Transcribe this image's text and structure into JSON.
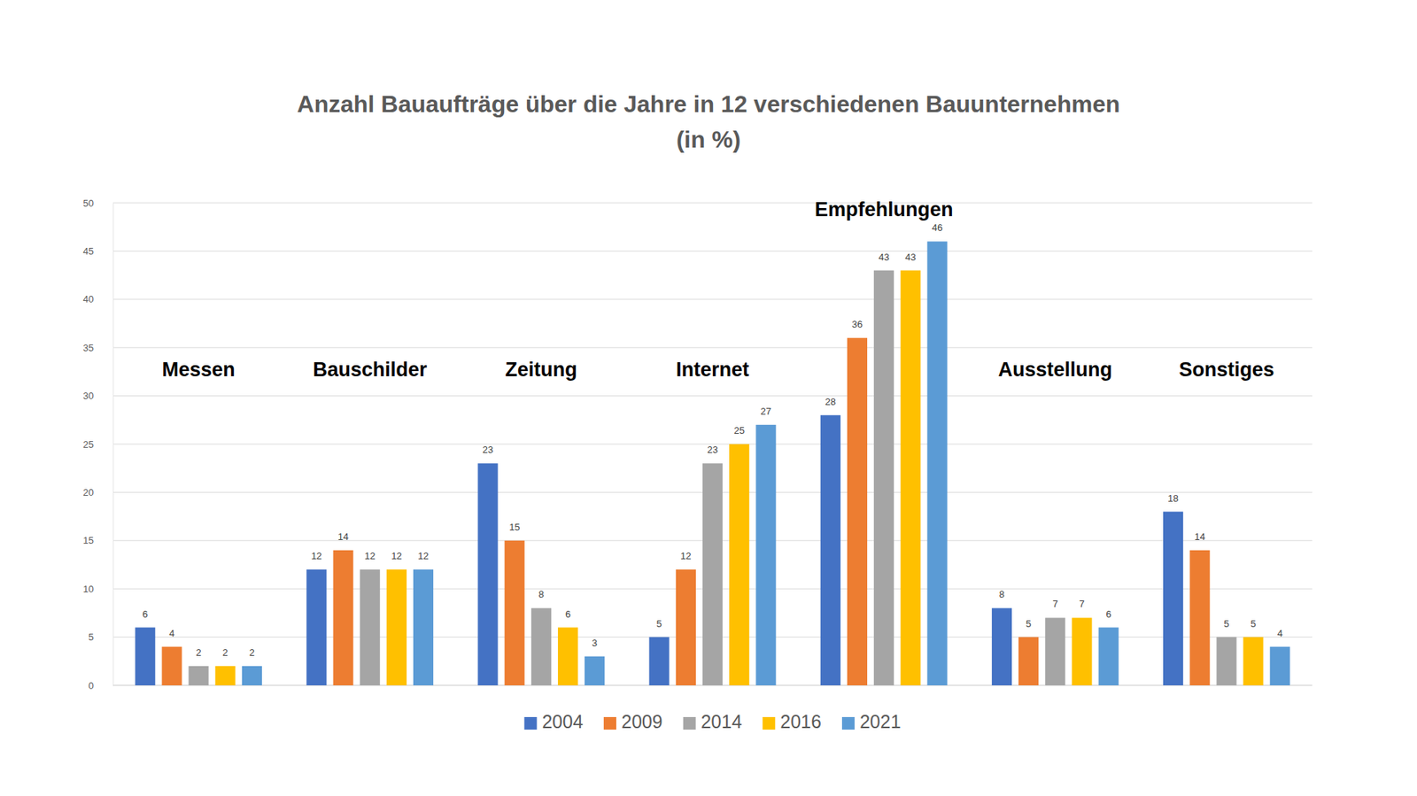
{
  "chart_data": {
    "type": "bar",
    "title": [
      "Anzahl Bauaufträge über die Jahre in 12 verschiedenen Bauunternehmen",
      "(in %)"
    ],
    "categories": [
      "Messen",
      "Bauschilder",
      "Zeitung",
      "Internet",
      "Empfehlungen",
      "Ausstellung",
      "Sonstiges"
    ],
    "series": [
      {
        "name": "2004",
        "color": "#4472c4",
        "values": [
          6,
          12,
          23,
          5,
          28,
          8,
          18
        ]
      },
      {
        "name": "2009",
        "color": "#ed7d31",
        "values": [
          4,
          14,
          15,
          12,
          36,
          5,
          14
        ]
      },
      {
        "name": "2014",
        "color": "#a5a5a5",
        "values": [
          2,
          12,
          8,
          23,
          43,
          7,
          5
        ]
      },
      {
        "name": "2016",
        "color": "#ffc000",
        "values": [
          2,
          12,
          6,
          25,
          43,
          7,
          5
        ]
      },
      {
        "name": "2021",
        "color": "#5b9bd5",
        "values": [
          2,
          12,
          3,
          27,
          46,
          6,
          4
        ]
      }
    ],
    "ylim": [
      0,
      50
    ],
    "yticks": [
      0,
      5,
      10,
      15,
      20,
      25,
      30,
      35,
      40,
      45,
      50
    ],
    "grid": true,
    "data_labels": true,
    "legend": "bottom"
  }
}
